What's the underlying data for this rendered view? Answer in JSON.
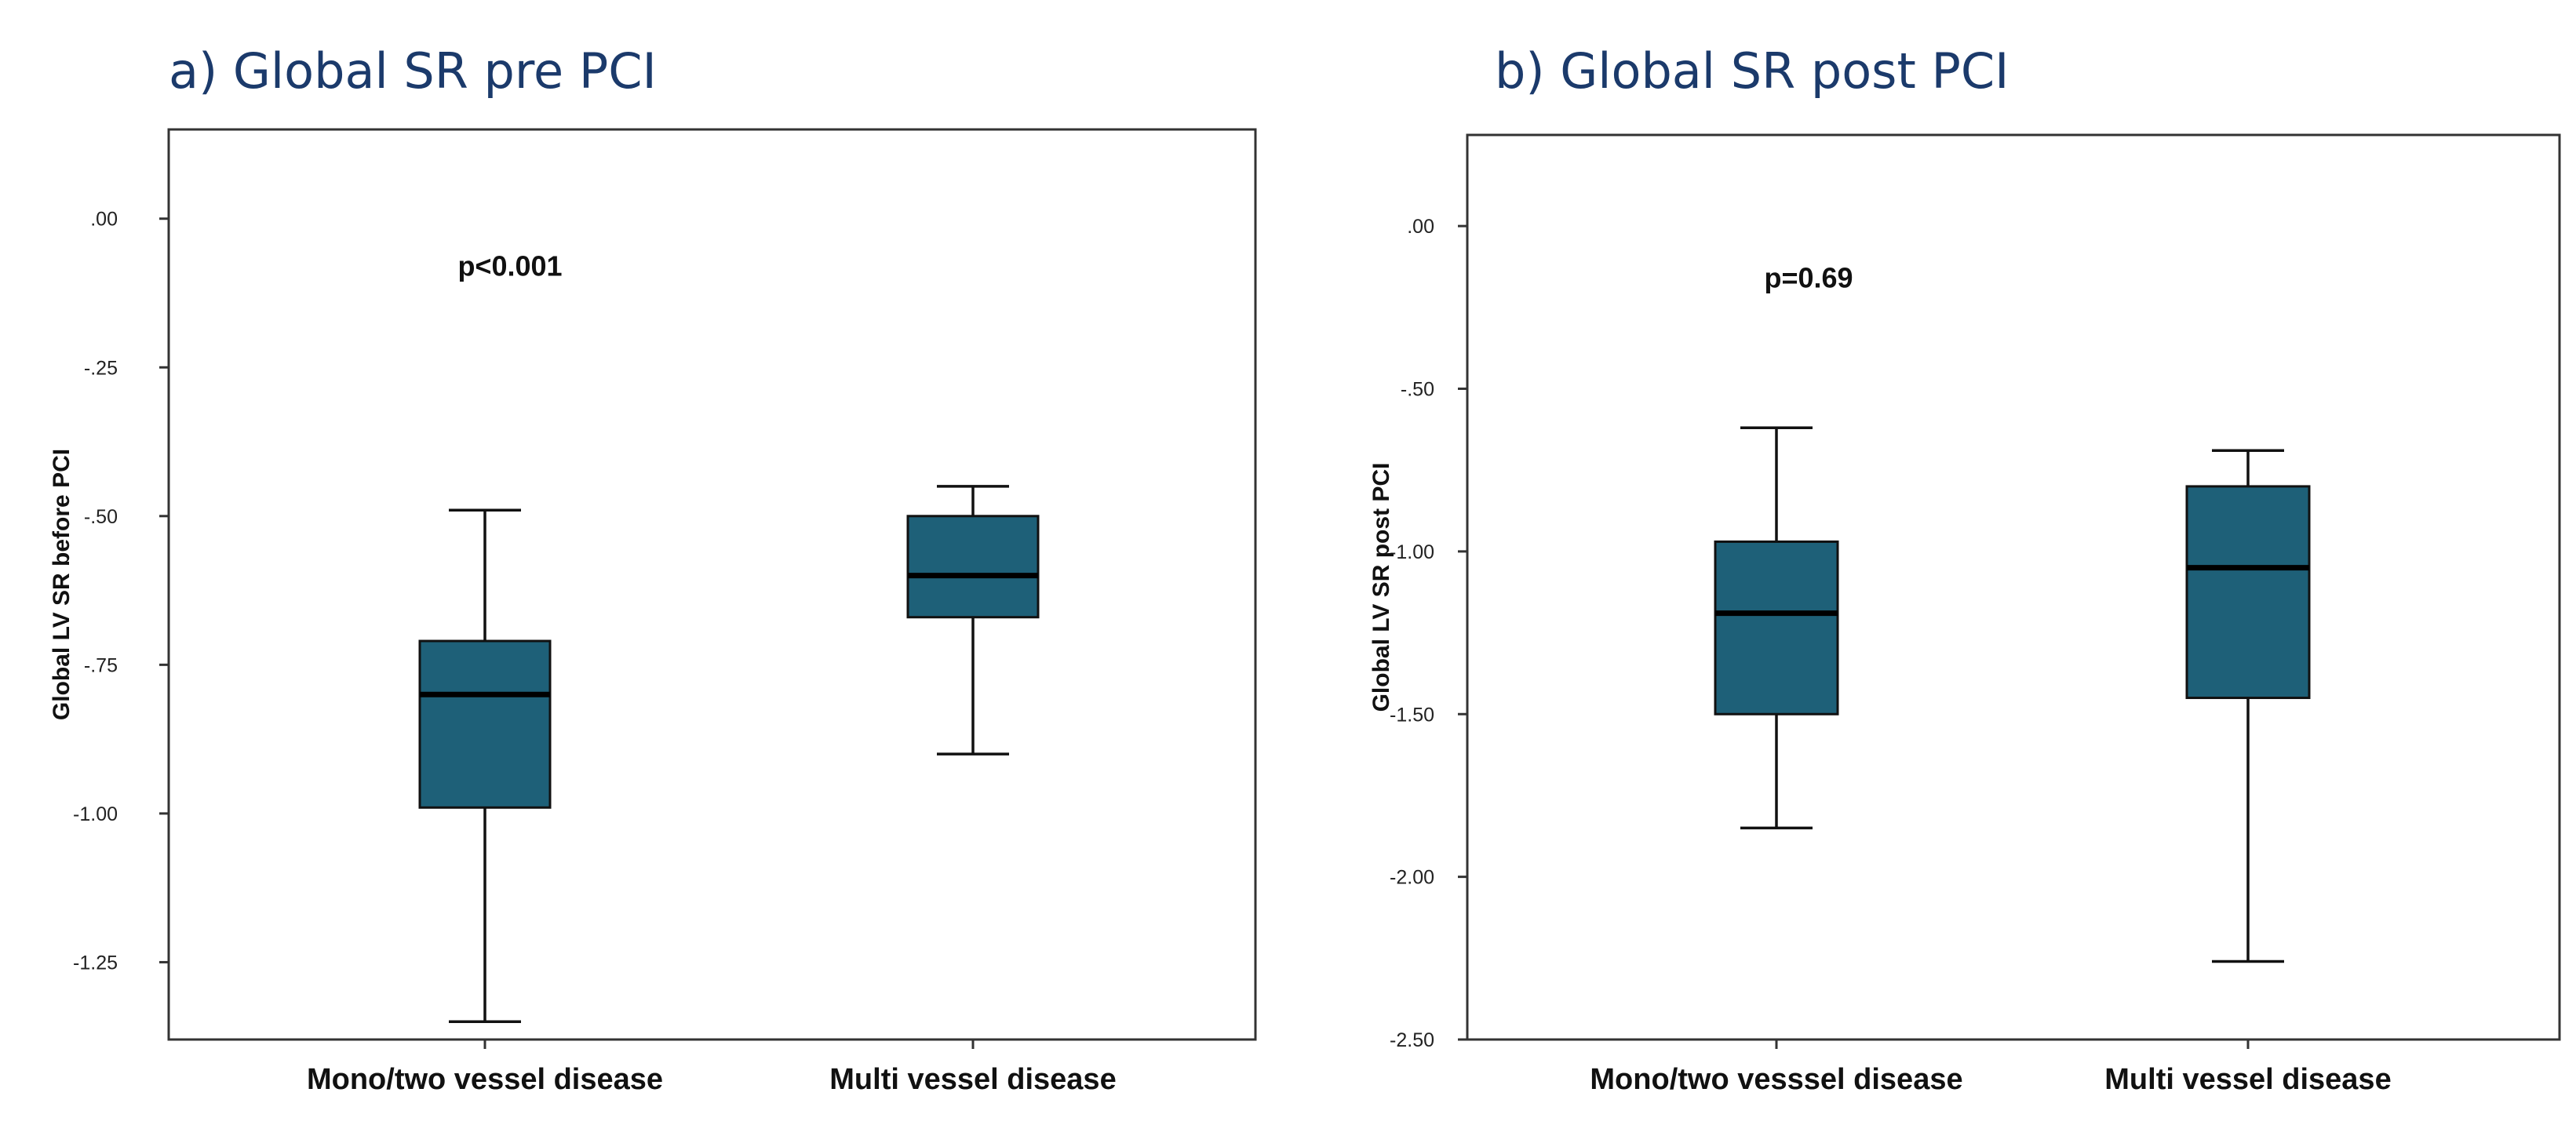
{
  "colors": {
    "box_fill": "#1e6078",
    "title": "#1b3a6b"
  },
  "chart_data": [
    {
      "type": "box",
      "title": "a) Global SR pre PCI",
      "ylabel": "Global LV SR before PCI",
      "xlabel": "",
      "ylim": [
        -1.38,
        0.15
      ],
      "yticks": [
        0.0,
        -0.25,
        -0.5,
        -0.75,
        -1.0,
        -1.25
      ],
      "ytick_labels": [
        ".00",
        "-.25",
        "-.50",
        "-.75",
        "-1.00",
        "-1.25"
      ],
      "annotation": "p<0.001",
      "annotation_y": -0.08,
      "categories": [
        "Mono/two vessel disease",
        "Multi vessel disease"
      ],
      "boxes": [
        {
          "category": "Mono/two vessel disease",
          "whisker_low": -1.35,
          "q1": -0.99,
          "median": -0.8,
          "q3": -0.71,
          "whisker_high": -0.49
        },
        {
          "category": "Multi vessel disease",
          "whisker_low": -0.9,
          "q1": -0.67,
          "median": -0.6,
          "q3": -0.5,
          "whisker_high": -0.45
        }
      ]
    },
    {
      "type": "box",
      "title": "b) Global SR post PCI",
      "ylabel": "Global LV SR post PCI",
      "xlabel": "",
      "ylim": [
        -2.5,
        0.28
      ],
      "yticks": [
        0.0,
        -0.5,
        -1.0,
        -1.5,
        -2.0,
        -2.5
      ],
      "ytick_labels": [
        ".00",
        "-.50",
        "-1.00",
        "-1.50",
        "-2.00",
        "-2.50"
      ],
      "annotation": "p=0.69",
      "annotation_y": -0.16,
      "categories": [
        "Mono/two vesssel disease",
        "Multi vessel disease"
      ],
      "boxes": [
        {
          "category": "Mono/two vesssel disease",
          "whisker_low": -1.85,
          "q1": -1.5,
          "median": -1.19,
          "q3": -0.97,
          "whisker_high": -0.62
        },
        {
          "category": "Multi vessel disease",
          "whisker_low": -2.26,
          "q1": -1.45,
          "median": -1.05,
          "q3": -0.8,
          "whisker_high": -0.69
        }
      ]
    }
  ]
}
